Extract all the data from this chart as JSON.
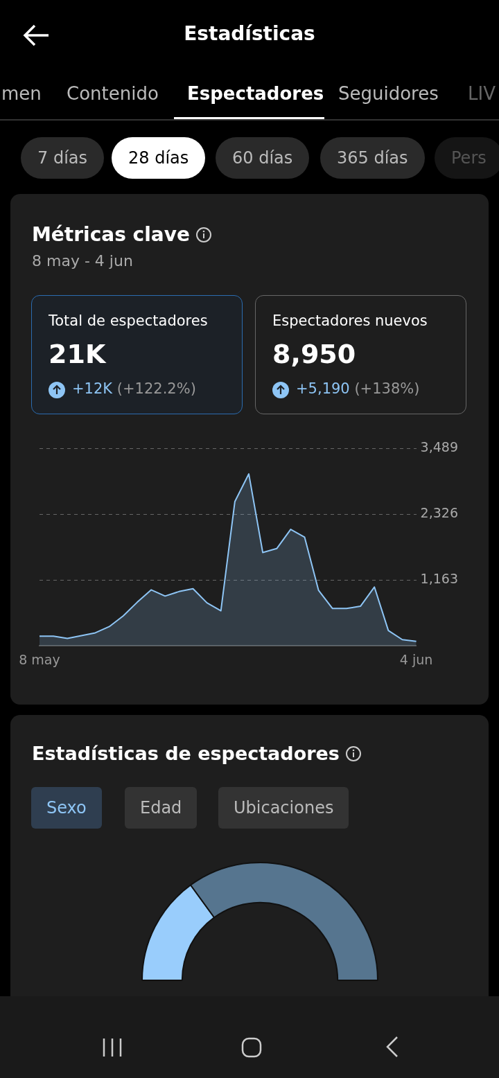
{
  "chart_data": [
    {
      "type": "other",
      "title": "Estadísticas",
      "annotations": [
        "men",
        "Contenido",
        "Espectadores",
        "Seguidores",
        "LIV",
        "7 días",
        "28 días",
        "60 días",
        "365 días",
        "Pers"
      ]
    },
    {
      "type": "area",
      "title": "Métricas clave",
      "subtitle": "8 may - 4 jun",
      "annotations": [
        "Total de espectadores",
        "21K",
        "+12K",
        "(+122.2%)",
        "Espectadores nuevos",
        "8,950",
        "+5,190",
        "(+138%)"
      ],
      "categories": [
        "8 may",
        null,
        null,
        null,
        null,
        null,
        null,
        null,
        null,
        null,
        null,
        null,
        null,
        null,
        null,
        null,
        null,
        null,
        null,
        null,
        null,
        null,
        null,
        null,
        null,
        null,
        null,
        "4 jun"
      ],
      "values": [
        170,
        170,
        130,
        180,
        230,
        340,
        530,
        770,
        990,
        880,
        960,
        1010,
        760,
        620,
        2550,
        3040,
        1650,
        1720,
        2060,
        1920,
        980,
        660,
        660,
        700,
        1040,
        270,
        110,
        80
      ],
      "color": "#8ec5f5",
      "ylim": [
        0,
        3489
      ],
      "yticks": [
        {
          "value": 1163,
          "label": "1,163"
        },
        {
          "value": 2326,
          "label": "2,326"
        },
        {
          "value": 3489,
          "label": "3,489"
        }
      ],
      "grid": "y",
      "marker": "none"
    },
    {
      "type": "donut",
      "title": "Estadísticas de espectadores",
      "annotations": [
        "Sexo",
        "Edad",
        "Ubicaciones"
      ],
      "categories": [
        null,
        null
      ],
      "values": [
        30,
        70
      ],
      "colors": [
        "#99cdfc",
        "#56758f"
      ]
    }
  ]
}
